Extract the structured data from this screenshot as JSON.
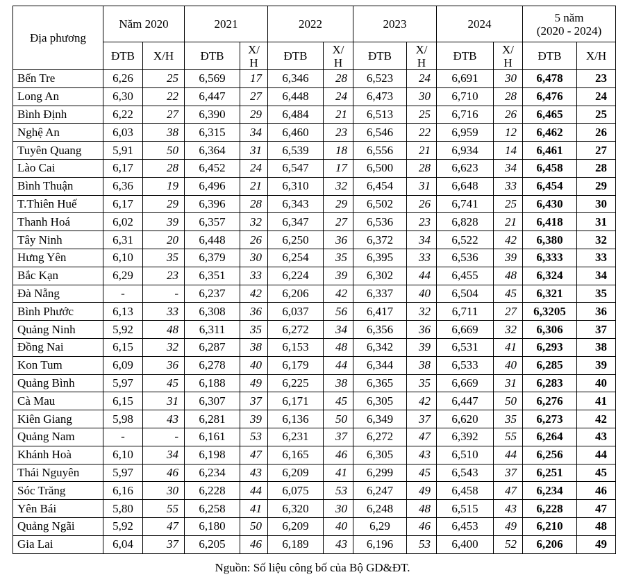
{
  "table": {
    "header": {
      "region": "Địa phương",
      "groups": [
        "Năm 2020",
        "2021",
        "2022",
        "2023",
        "2024",
        "5 năm"
      ],
      "period": "(2020 - 2024)",
      "subheaders": [
        "ĐTB",
        "X/H",
        "ĐTB",
        "X/H",
        "ĐTB",
        "X/H",
        "ĐTB",
        "X/H",
        "ĐTB",
        "X/H",
        "ĐTB",
        "X/H"
      ]
    },
    "rows": [
      [
        "Bến Tre",
        "6,26",
        "25",
        "6,569",
        "17",
        "6,346",
        "28",
        "6,523",
        "24",
        "6,691",
        "30",
        "6,478",
        "23"
      ],
      [
        "Long An",
        "6,30",
        "22",
        "6,447",
        "27",
        "6,448",
        "24",
        "6,473",
        "30",
        "6,710",
        "28",
        "6,476",
        "24"
      ],
      [
        "Bình Định",
        "6,22",
        "27",
        "6,390",
        "29",
        "6,484",
        "21",
        "6,513",
        "25",
        "6,716",
        "26",
        "6,465",
        "25"
      ],
      [
        "Nghệ An",
        "6,03",
        "38",
        "6,315",
        "34",
        "6,460",
        "23",
        "6,546",
        "22",
        "6,959",
        "12",
        "6,462",
        "26"
      ],
      [
        "Tuyên Quang",
        "5,91",
        "50",
        "6,364",
        "31",
        "6,539",
        "18",
        "6,556",
        "21",
        "6,934",
        "14",
        "6,461",
        "27"
      ],
      [
        "Lào Cai",
        "6,17",
        "28",
        "6,452",
        "24",
        "6,547",
        "17",
        "6,500",
        "28",
        "6,623",
        "34",
        "6,458",
        "28"
      ],
      [
        "Bình Thuận",
        "6,36",
        "19",
        "6,496",
        "21",
        "6,310",
        "32",
        "6,454",
        "31",
        "6,648",
        "33",
        "6,454",
        "29"
      ],
      [
        "T.Thiên Huế",
        "6,17",
        "29",
        "6,396",
        "28",
        "6,343",
        "29",
        "6,502",
        "26",
        "6,741",
        "25",
        "6,430",
        "30"
      ],
      [
        "Thanh Hoá",
        "6,02",
        "39",
        "6,357",
        "32",
        "6,347",
        "27",
        "6,536",
        "23",
        "6,828",
        "21",
        "6,418",
        "31"
      ],
      [
        "Tây Ninh",
        "6,31",
        "20",
        "6,448",
        "26",
        "6,250",
        "36",
        "6,372",
        "34",
        "6,522",
        "42",
        "6,380",
        "32"
      ],
      [
        "Hưng Yên",
        "6,10",
        "35",
        "6,379",
        "30",
        "6,254",
        "35",
        "6,395",
        "33",
        "6,536",
        "39",
        "6,333",
        "33"
      ],
      [
        "Bắc Kạn",
        "6,29",
        "23",
        "6,351",
        "33",
        "6,224",
        "39",
        "6,302",
        "44",
        "6,455",
        "48",
        "6,324",
        "34"
      ],
      [
        "Đà Nẵng",
        "-",
        "-",
        "6,237",
        "42",
        "6,206",
        "42",
        "6,337",
        "40",
        "6,504",
        "45",
        "6,321",
        "35"
      ],
      [
        "Bình Phước",
        "6,13",
        "33",
        "6,308",
        "36",
        "6,037",
        "56",
        "6,417",
        "32",
        "6,711",
        "27",
        "6,3205",
        "36"
      ],
      [
        "Quảng Ninh",
        "5,92",
        "48",
        "6,311",
        "35",
        "6,272",
        "34",
        "6,356",
        "36",
        "6,669",
        "32",
        "6,306",
        "37"
      ],
      [
        "Đồng Nai",
        "6,15",
        "32",
        "6,287",
        "38",
        "6,153",
        "48",
        "6,342",
        "39",
        "6,531",
        "41",
        "6,293",
        "38"
      ],
      [
        "Kon Tum",
        "6,09",
        "36",
        "6,278",
        "40",
        "6,179",
        "44",
        "6,344",
        "38",
        "6,533",
        "40",
        "6,285",
        "39"
      ],
      [
        "Quảng Bình",
        "5,97",
        "45",
        "6,188",
        "49",
        "6,225",
        "38",
        "6,365",
        "35",
        "6,669",
        "31",
        "6,283",
        "40"
      ],
      [
        "Cà Mau",
        "6,15",
        "31",
        "6,307",
        "37",
        "6,171",
        "45",
        "6,305",
        "42",
        "6,447",
        "50",
        "6,276",
        "41"
      ],
      [
        "Kiên Giang",
        "5,98",
        "43",
        "6,281",
        "39",
        "6,136",
        "50",
        "6,349",
        "37",
        "6,620",
        "35",
        "6,273",
        "42"
      ],
      [
        "Quảng Nam",
        "-",
        "-",
        "6,161",
        "53",
        "6,231",
        "37",
        "6,272",
        "47",
        "6,392",
        "55",
        "6,264",
        "43"
      ],
      [
        "Khánh Hoà",
        "6,10",
        "34",
        "6,198",
        "47",
        "6,165",
        "46",
        "6,305",
        "43",
        "6,510",
        "44",
        "6,256",
        "44"
      ],
      [
        "Thái Nguyên",
        "5,97",
        "46",
        "6,234",
        "43",
        "6,209",
        "41",
        "6,299",
        "45",
        "6,543",
        "37",
        "6,251",
        "45"
      ],
      [
        "Sóc Trăng",
        "6,16",
        "30",
        "6,228",
        "44",
        "6,075",
        "53",
        "6,247",
        "49",
        "6,458",
        "47",
        "6,234",
        "46"
      ],
      [
        "Yên Bái",
        "5,80",
        "55",
        "6,258",
        "41",
        "6,320",
        "30",
        "6,248",
        "48",
        "6,515",
        "43",
        "6,228",
        "47"
      ],
      [
        "Quảng Ngãi",
        "5,92",
        "47",
        "6,180",
        "50",
        "6,209",
        "40",
        "6,29",
        "46",
        "6,453",
        "49",
        "6,210",
        "48"
      ],
      [
        "Gia Lai",
        "6,04",
        "37",
        "6,205",
        "46",
        "6,189",
        "43",
        "6,196",
        "53",
        "6,400",
        "52",
        "6,206",
        "49"
      ]
    ]
  },
  "source": "Nguồn: Số liệu công bố của Bộ GD&ĐT."
}
